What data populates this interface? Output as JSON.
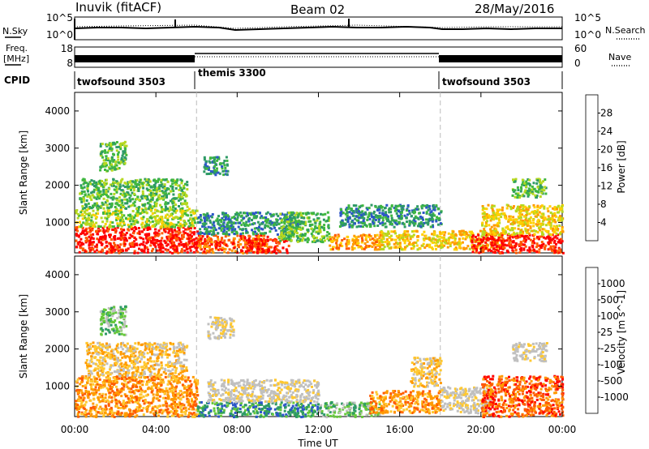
{
  "header": {
    "station": "Inuvik (fitACF)",
    "beam": "Beam 02",
    "date": "28/May/2016"
  },
  "summary": {
    "nsky_label": "N.Sky",
    "nsearch_label": "N.Search",
    "freq_label": "Freq.",
    "freq_unit": "[MHz]",
    "nave_label": "Nave",
    "cpid_label": "CPID",
    "nsky_ticks": [
      "10^5",
      "10^0"
    ],
    "nsearch_ticks": [
      "10^5",
      "10^0"
    ],
    "freq_ticks": [
      "18",
      "8"
    ],
    "nave_ticks": [
      "60",
      "0"
    ],
    "cpid_segments": [
      {
        "label": "twofsound 3503",
        "start_h": 0,
        "end_h": 6
      },
      {
        "label": "themis 3300",
        "start_h": 6,
        "end_h": 18
      },
      {
        "label": "twofsound 3503",
        "start_h": 18,
        "end_h": 24
      }
    ]
  },
  "colors": {
    "power": [
      "#0000ff",
      "#2c56c8",
      "#2e9a66",
      "#3fb73f",
      "#b6d820",
      "#ffd000",
      "#ff9a00",
      "#ff5a00",
      "#ff0000"
    ],
    "velocity": [
      "#ff0000",
      "#ff5a00",
      "#ff9a00",
      "#ffc830",
      "#c0c0c0",
      "#c0c0c0",
      "#66c93a",
      "#2e9a66",
      "#2c56c8"
    ]
  },
  "chart_data": [
    {
      "type": "heatmap",
      "name": "Power",
      "xlabel": "",
      "ylabel": "Slant Range [km]",
      "xlim": [
        0,
        24
      ],
      "ylim": [
        180,
        4500
      ],
      "yticks": [
        1000,
        2000,
        3000,
        4000
      ],
      "colorbar_label": "Power [dB]",
      "colorbar_ticks": [
        "4",
        "8",
        "12",
        "16",
        "20",
        "24",
        "28"
      ],
      "regions": [
        {
          "t0": 0.0,
          "t1": 6.0,
          "r0": 200,
          "r1": 900,
          "level": 8
        },
        {
          "t0": 0.0,
          "t1": 6.0,
          "r0": 900,
          "r1": 1400,
          "level": 4
        },
        {
          "t0": 0.2,
          "t1": 5.5,
          "r0": 1400,
          "r1": 2200,
          "level": 3
        },
        {
          "t0": 1.2,
          "t1": 2.5,
          "r0": 2400,
          "r1": 3200,
          "level": 3
        },
        {
          "t0": 6.0,
          "t1": 9.5,
          "r0": 200,
          "r1": 700,
          "level": 7
        },
        {
          "t0": 6.0,
          "t1": 11.0,
          "r0": 700,
          "r1": 1300,
          "level": 2
        },
        {
          "t0": 8.5,
          "t1": 10.5,
          "r0": 200,
          "r1": 600,
          "level": 8
        },
        {
          "t0": 6.3,
          "t1": 7.5,
          "r0": 2300,
          "r1": 2800,
          "level": 2
        },
        {
          "t0": 10.0,
          "t1": 12.5,
          "r0": 500,
          "r1": 1300,
          "level": 3
        },
        {
          "t0": 12.5,
          "t1": 15.0,
          "r0": 300,
          "r1": 700,
          "level": 6
        },
        {
          "t0": 15.0,
          "t1": 18.0,
          "r0": 300,
          "r1": 800,
          "level": 5
        },
        {
          "t0": 13.0,
          "t1": 18.0,
          "r0": 900,
          "r1": 1500,
          "level": 2
        },
        {
          "t0": 18.0,
          "t1": 21.0,
          "r0": 300,
          "r1": 800,
          "level": 5
        },
        {
          "t0": 19.5,
          "t1": 24.0,
          "r0": 200,
          "r1": 700,
          "level": 8
        },
        {
          "t0": 20.0,
          "t1": 24.0,
          "r0": 700,
          "r1": 1500,
          "level": 5
        },
        {
          "t0": 21.5,
          "t1": 23.2,
          "r0": 1700,
          "r1": 2200,
          "level": 3
        }
      ]
    },
    {
      "type": "heatmap",
      "name": "Velocity",
      "xlabel": "Time UT",
      "ylabel": "Slant Range [km]",
      "xlim": [
        0,
        24
      ],
      "ylim": [
        180,
        4500
      ],
      "yticks": [
        1000,
        2000,
        3000,
        4000
      ],
      "xticks": [
        "00:00",
        "04:00",
        "08:00",
        "12:00",
        "16:00",
        "20:00",
        "00:00"
      ],
      "colorbar_label": "Velocity [m s^-1]",
      "colorbar_ticks": [
        "-1000",
        "-500",
        "-100",
        "-25",
        "25",
        "100",
        "500",
        "1000"
      ],
      "regions": [
        {
          "t0": 0.0,
          "t1": 6.0,
          "r0": 200,
          "r1": 1300,
          "level": 2
        },
        {
          "t0": 0.5,
          "t1": 5.5,
          "r0": 1300,
          "r1": 2200,
          "level": 3
        },
        {
          "t0": 1.2,
          "t1": 2.5,
          "r0": 2400,
          "r1": 3200,
          "level": 6
        },
        {
          "t0": 6.0,
          "t1": 12.0,
          "r0": 200,
          "r1": 600,
          "level": 7
        },
        {
          "t0": 6.5,
          "t1": 12.0,
          "r0": 600,
          "r1": 1200,
          "level": 4
        },
        {
          "t0": 6.5,
          "t1": 7.8,
          "r0": 2300,
          "r1": 2900,
          "level": 4
        },
        {
          "t0": 12.0,
          "t1": 15.0,
          "r0": 200,
          "r1": 600,
          "level": 6
        },
        {
          "t0": 14.5,
          "t1": 18.0,
          "r0": 300,
          "r1": 900,
          "level": 2
        },
        {
          "t0": 16.5,
          "t1": 18.0,
          "r0": 1000,
          "r1": 1800,
          "level": 3
        },
        {
          "t0": 18.0,
          "t1": 20.5,
          "r0": 300,
          "r1": 1000,
          "level": 4
        },
        {
          "t0": 20.0,
          "t1": 24.0,
          "r0": 200,
          "r1": 1300,
          "level": 1
        },
        {
          "t0": 21.5,
          "t1": 23.2,
          "r0": 1700,
          "r1": 2200,
          "level": 4
        }
      ]
    }
  ]
}
